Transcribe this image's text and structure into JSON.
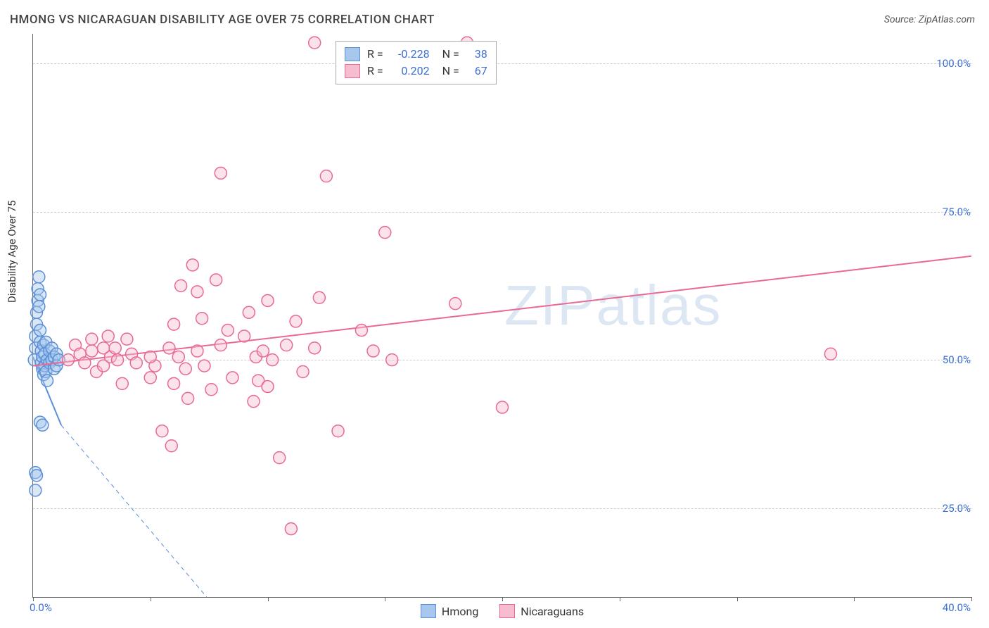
{
  "header": {
    "title": "HMONG VS NICARAGUAN DISABILITY AGE OVER 75 CORRELATION CHART",
    "source_prefix": "Source: ",
    "source_name": "ZipAtlas.com"
  },
  "watermark": "ZIPatlas",
  "y_axis": {
    "label": "Disability Age Over 75"
  },
  "chart": {
    "type": "scatter",
    "xlim": [
      0,
      40
    ],
    "ylim": [
      10,
      105
    ],
    "x_ticks": [
      0,
      5,
      10,
      15,
      20,
      25,
      30,
      35,
      40
    ],
    "x_tick_labels": {
      "min": "0.0%",
      "max": "40.0%"
    },
    "y_gridlines": [
      25,
      50,
      75,
      100
    ],
    "y_tick_labels": [
      "25.0%",
      "50.0%",
      "75.0%",
      "100.0%"
    ],
    "background_color": "#ffffff",
    "grid_color": "#cccccc",
    "axis_color": "#666666",
    "marker_radius": 8.5,
    "marker_stroke_width": 1.5,
    "marker_fill_opacity": 0.18,
    "trend_line_width": 2,
    "dashed_line_dash": "6,5"
  },
  "series": {
    "hmong": {
      "label": "Hmong",
      "color_stroke": "#5b8fd6",
      "color_fill": "#a8c7ec",
      "R": "-0.228",
      "N": "38",
      "trend": {
        "x1": 0.0,
        "y1": 50.5,
        "x2": 1.2,
        "y2": 39.0
      },
      "trend_dashed": {
        "x1": 1.2,
        "y1": 39.0,
        "x2": 7.4,
        "y2": 10.0
      },
      "points": [
        [
          0.05,
          50.0
        ],
        [
          0.1,
          52.0
        ],
        [
          0.1,
          54.0
        ],
        [
          0.15,
          56.0
        ],
        [
          0.15,
          58.0
        ],
        [
          0.2,
          60.0
        ],
        [
          0.2,
          62.0
        ],
        [
          0.25,
          64.0
        ],
        [
          0.25,
          59.0
        ],
        [
          0.3,
          61.0
        ],
        [
          0.3,
          55.0
        ],
        [
          0.3,
          53.0
        ],
        [
          0.35,
          51.5
        ],
        [
          0.35,
          49.5
        ],
        [
          0.4,
          48.5
        ],
        [
          0.4,
          50.5
        ],
        [
          0.45,
          52.5
        ],
        [
          0.45,
          47.5
        ],
        [
          0.5,
          49.0
        ],
        [
          0.5,
          51.0
        ],
        [
          0.55,
          53.0
        ],
        [
          0.55,
          48.0
        ],
        [
          0.6,
          46.5
        ],
        [
          0.6,
          50.0
        ],
        [
          0.7,
          49.5
        ],
        [
          0.7,
          51.5
        ],
        [
          0.8,
          50.0
        ],
        [
          0.8,
          52.0
        ],
        [
          0.9,
          50.5
        ],
        [
          0.9,
          48.5
        ],
        [
          0.3,
          39.5
        ],
        [
          0.4,
          39.0
        ],
        [
          0.1,
          31.0
        ],
        [
          0.15,
          30.5
        ],
        [
          0.1,
          28.0
        ],
        [
          1.0,
          49.0
        ],
        [
          1.0,
          51.0
        ],
        [
          1.1,
          50.0
        ]
      ]
    },
    "nicaraguan": {
      "label": "Nicaraguans",
      "color_stroke": "#e86a94",
      "color_fill": "#f6bcd0",
      "R": "0.202",
      "N": "67",
      "trend": {
        "x1": 0.0,
        "y1": 49.0,
        "x2": 40.0,
        "y2": 67.5
      },
      "points": [
        [
          1.5,
          50.0
        ],
        [
          1.8,
          52.5
        ],
        [
          2.0,
          51.0
        ],
        [
          2.2,
          49.5
        ],
        [
          2.5,
          53.5
        ],
        [
          2.5,
          51.5
        ],
        [
          2.7,
          48.0
        ],
        [
          3.0,
          52.0
        ],
        [
          3.0,
          49.0
        ],
        [
          3.2,
          54.0
        ],
        [
          3.3,
          50.5
        ],
        [
          3.5,
          52.0
        ],
        [
          3.6,
          50.0
        ],
        [
          3.8,
          46.0
        ],
        [
          4.0,
          53.5
        ],
        [
          4.2,
          51.0
        ],
        [
          4.4,
          49.5
        ],
        [
          5.0,
          47.0
        ],
        [
          5.2,
          49.0
        ],
        [
          5.5,
          38.0
        ],
        [
          5.8,
          52.0
        ],
        [
          5.9,
          35.5
        ],
        [
          6.0,
          56.0
        ],
        [
          6.0,
          46.0
        ],
        [
          6.2,
          50.5
        ],
        [
          6.3,
          62.5
        ],
        [
          6.5,
          48.5
        ],
        [
          6.6,
          43.5
        ],
        [
          6.8,
          66.0
        ],
        [
          7.0,
          61.5
        ],
        [
          7.0,
          51.5
        ],
        [
          7.2,
          57.0
        ],
        [
          7.3,
          49.0
        ],
        [
          7.6,
          45.0
        ],
        [
          7.8,
          63.5
        ],
        [
          8.0,
          81.5
        ],
        [
          8.0,
          52.5
        ],
        [
          8.3,
          55.0
        ],
        [
          8.5,
          47.0
        ],
        [
          9.0,
          54.0
        ],
        [
          9.2,
          58.0
        ],
        [
          9.4,
          43.0
        ],
        [
          9.5,
          50.5
        ],
        [
          9.6,
          46.5
        ],
        [
          9.8,
          51.5
        ],
        [
          10.0,
          60.0
        ],
        [
          10.0,
          45.5
        ],
        [
          10.2,
          50.0
        ],
        [
          10.5,
          33.5
        ],
        [
          10.8,
          52.5
        ],
        [
          11.0,
          21.5
        ],
        [
          11.2,
          56.5
        ],
        [
          11.5,
          48.0
        ],
        [
          12.0,
          103.5
        ],
        [
          12.0,
          52.0
        ],
        [
          12.2,
          60.5
        ],
        [
          12.5,
          81.0
        ],
        [
          13.0,
          38.0
        ],
        [
          14.0,
          55.0
        ],
        [
          14.5,
          51.5
        ],
        [
          15.0,
          71.5
        ],
        [
          15.3,
          50.0
        ],
        [
          18.0,
          59.5
        ],
        [
          18.5,
          103.5
        ],
        [
          20.0,
          42.0
        ],
        [
          34.0,
          51.0
        ],
        [
          5.0,
          50.5
        ]
      ]
    }
  },
  "stats_legend": {
    "r_label": "R =",
    "n_label": "N ="
  }
}
